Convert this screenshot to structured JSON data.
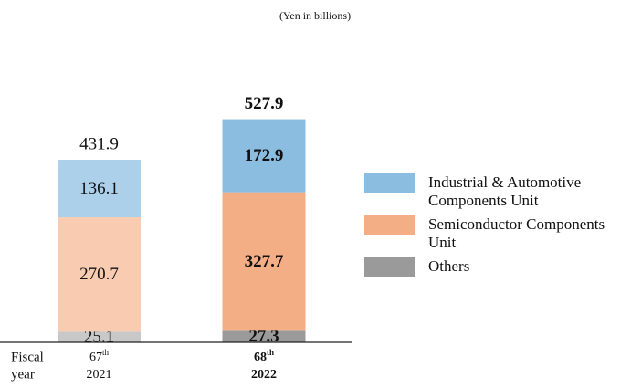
{
  "chart_data": {
    "type": "stacked_bar",
    "subtitle": "(Yen in billions)",
    "x_label": [
      "Fiscal",
      "year"
    ],
    "categories": [
      "2021",
      "2022"
    ],
    "ordinals": [
      "67",
      "68"
    ],
    "ordinal_suffixes": [
      "th",
      "th"
    ],
    "highlight_index": 1,
    "series": [
      {
        "name": "Others",
        "color": "#9a9a9a",
        "colors": [
          "#c8c8c8",
          "#9a9a9a"
        ],
        "values": [
          25.1,
          27.3
        ]
      },
      {
        "name": "Semiconductor Components Unit",
        "color": "#f4ae86",
        "colors": [
          "#f9cbb0",
          "#f4ae86"
        ],
        "values": [
          270.7,
          327.7
        ]
      },
      {
        "name": "Industrial & Automotive Components Unit",
        "color": "#8bbde0",
        "colors": [
          "#acd0ea",
          "#8bbde0"
        ],
        "values": [
          136.1,
          172.9
        ]
      }
    ],
    "totals": [
      431.9,
      527.9
    ],
    "legend_order": [
      2,
      1,
      0
    ]
  }
}
